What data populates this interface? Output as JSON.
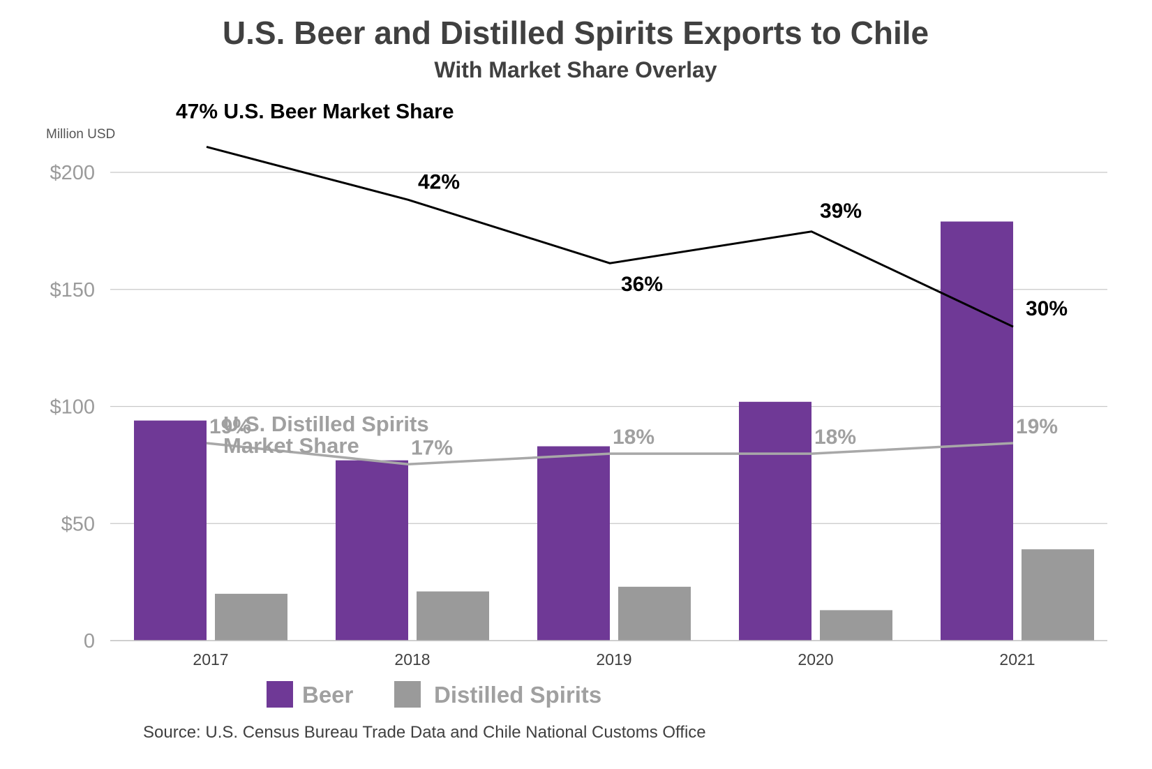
{
  "colors": {
    "beer": "#6f3996",
    "spirits": "#9a9a9a",
    "beer_line": "#000000",
    "spirits_line": "#a8a8a8"
  },
  "chart_data": {
    "type": "bar",
    "title": "U.S. Beer and Distilled Spirits Exports to Chile",
    "subtitle": "With Market Share Overlay",
    "unit_label": "Million USD",
    "categories": [
      "2017",
      "2018",
      "2019",
      "2020",
      "2021"
    ],
    "ylim": [
      0,
      200
    ],
    "yticks": [
      {
        "value": 0,
        "label": "0"
      },
      {
        "value": 50,
        "label": "$50"
      },
      {
        "value": 100,
        "label": "$100"
      },
      {
        "value": 150,
        "label": "$150"
      },
      {
        "value": 200,
        "label": "$200"
      }
    ],
    "grid": true,
    "series": [
      {
        "name": "Beer",
        "color_key": "beer",
        "values": [
          94,
          77,
          83,
          102,
          179
        ]
      },
      {
        "name": "Distilled Spirits",
        "color_key": "spirits",
        "values": [
          20,
          21,
          23,
          13,
          39
        ]
      }
    ],
    "share_lines": [
      {
        "name": "U.S. Beer Market Share",
        "color_key": "beer_line",
        "values": [
          47,
          42,
          36,
          39,
          30
        ],
        "labels": [
          "47% U.S. Beer Market Share",
          "42%",
          "36%",
          "39%",
          "30%"
        ]
      },
      {
        "name_lines": [
          "U.S. Distilled Spirits",
          "Market Share"
        ],
        "color_key": "spirits_line",
        "values": [
          19,
          17,
          18,
          18,
          19
        ],
        "labels": [
          "19%",
          "17%",
          "18%",
          "18%",
          "19%"
        ]
      }
    ],
    "legend": {
      "position": "bottom",
      "items": [
        "Beer",
        "Distilled Spirits"
      ]
    },
    "source": "Source: U.S. Census Bureau Trade Data and Chile National Customs Office"
  }
}
